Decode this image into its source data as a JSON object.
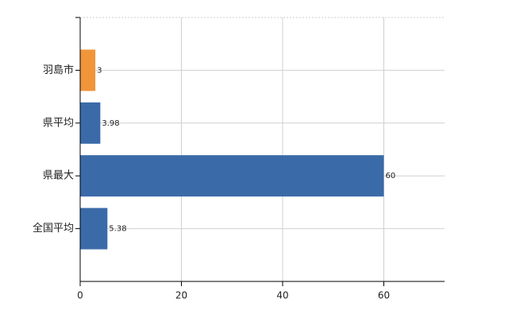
{
  "chart_data": {
    "type": "bar",
    "orientation": "horizontal",
    "categories": [
      "羽島市",
      "県平均",
      "県最大",
      "全国平均"
    ],
    "values": [
      3,
      3.98,
      60,
      5.38
    ],
    "colors": [
      "#f0953a",
      "#3a6aa8",
      "#3a6aa8",
      "#3a6aa8"
    ],
    "xlim": [
      0,
      72
    ],
    "xticks": [
      0,
      20,
      40,
      60
    ],
    "grid": true
  }
}
